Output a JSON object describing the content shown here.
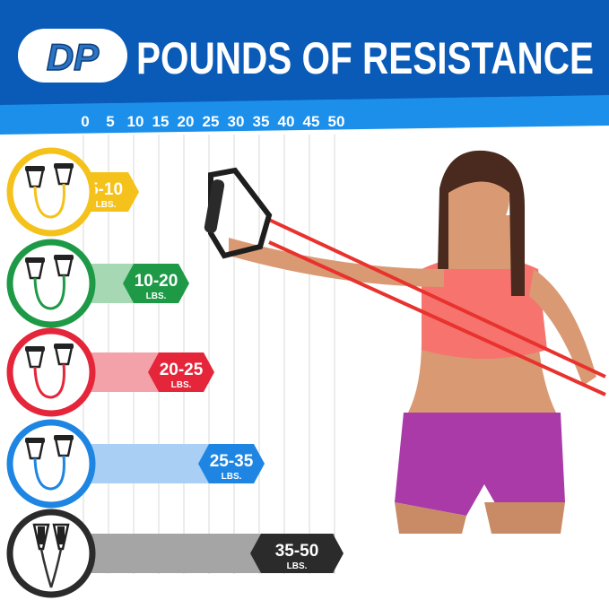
{
  "header": {
    "logo_text": "DP",
    "title": "POUNDS OF RESISTANCE"
  },
  "colors": {
    "header_dark": "#0a5ab8",
    "header_light": "#1b8fea"
  },
  "chart_data": {
    "type": "bar",
    "orientation": "horizontal-range",
    "title": "POUNDS OF RESISTANCE",
    "xlim": [
      0,
      50
    ],
    "xticks": [
      "0",
      "5",
      "10",
      "15",
      "20",
      "25",
      "30",
      "35",
      "40",
      "45",
      "50"
    ],
    "grid": true,
    "series": [
      {
        "label": "5-10",
        "unit": "LBS.",
        "min": 5,
        "max": 10,
        "color": "#f5c21b",
        "bar_color": "#fbe8a0",
        "icon": "yellow-resistance-band-icon"
      },
      {
        "label": "10-20",
        "unit": "LBS.",
        "min": 10,
        "max": 20,
        "color": "#1e9a47",
        "bar_color": "#a6d8b4",
        "icon": "green-resistance-band-icon"
      },
      {
        "label": "20-25",
        "unit": "LBS.",
        "min": 20,
        "max": 25,
        "color": "#e5263a",
        "bar_color": "#f4a2aa",
        "icon": "red-resistance-band-icon"
      },
      {
        "label": "25-35",
        "unit": "LBS.",
        "min": 25,
        "max": 35,
        "color": "#1e86e2",
        "bar_color": "#a9cff4",
        "icon": "blue-resistance-band-icon"
      },
      {
        "label": "35-50",
        "unit": "LBS.",
        "min": 35,
        "max": 50,
        "color": "#2b2b2b",
        "bar_color": "#a5a5a5",
        "icon": "black-resistance-band-icon"
      }
    ]
  }
}
